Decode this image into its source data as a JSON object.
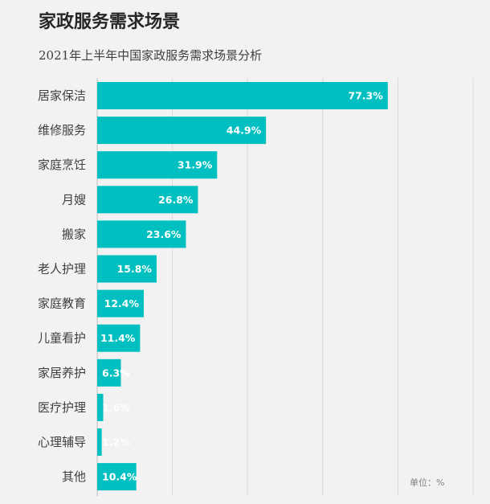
{
  "header": {
    "title": "家政服务需求场景",
    "subtitle": "2021年上半年中国家政服务需求场景分析"
  },
  "unit_note": "单位：%",
  "colors": {
    "bar": "#00bfc0",
    "grid": "#d9d9d9",
    "background": "#f2f2f2"
  },
  "chart_data": {
    "type": "bar",
    "orientation": "horizontal",
    "title": "家政服务需求场景",
    "subtitle": "2021年上半年中国家政服务需求场景分析",
    "categories": [
      "居家保洁",
      "维修服务",
      "家庭烹饪",
      "月嫂",
      "搬家",
      "老人护理",
      "家庭教育",
      "儿童看护",
      "家居养护",
      "医疗护理",
      "心理辅导",
      "其他"
    ],
    "values": [
      77.3,
      44.9,
      31.9,
      26.8,
      23.6,
      15.8,
      12.4,
      11.4,
      6.3,
      1.6,
      1.2,
      10.4
    ],
    "value_labels": [
      "77.3%",
      "44.9%",
      "31.9%",
      "26.8%",
      "23.6%",
      "15.8%",
      "12.4%",
      "11.4%",
      "6.3%",
      "1.6%",
      "1.2%",
      "10.4%"
    ],
    "xlim": [
      0,
      100
    ],
    "grid": true,
    "unit": "%"
  }
}
